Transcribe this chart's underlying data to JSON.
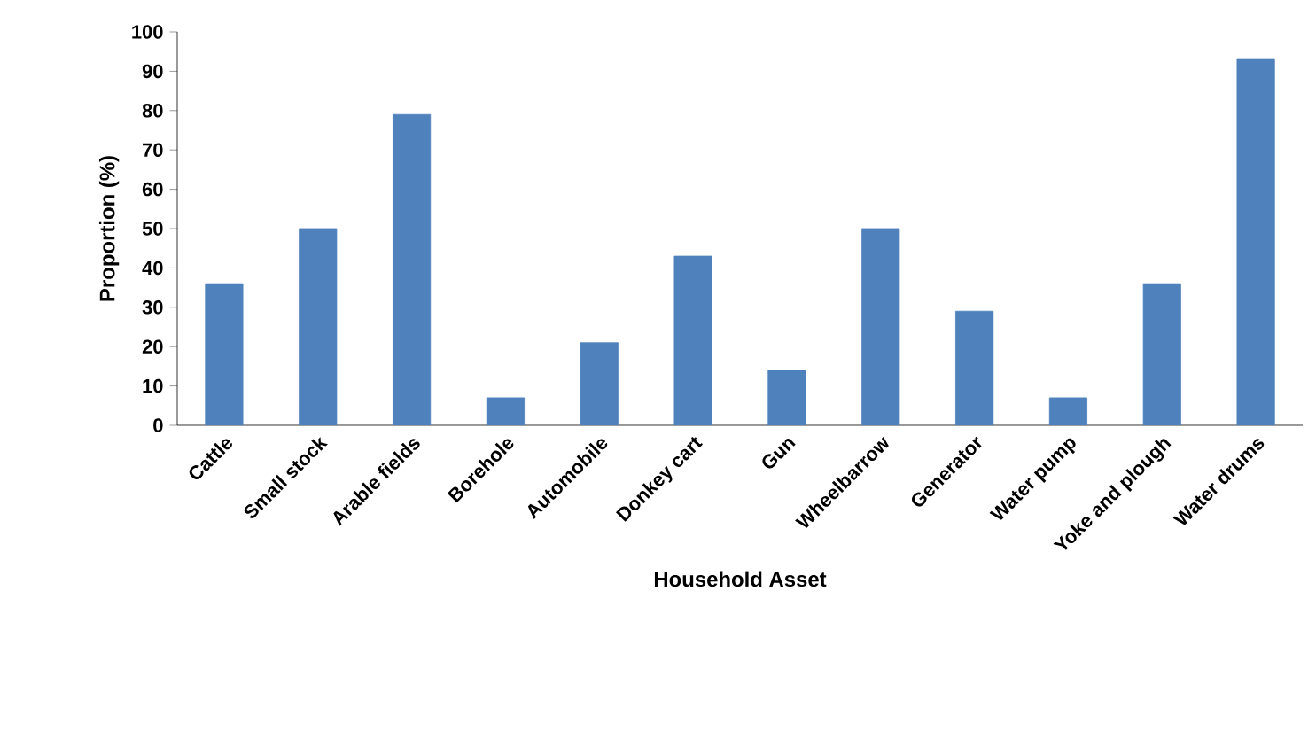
{
  "chart_data": {
    "type": "bar",
    "xlabel": "Household Asset",
    "ylabel": "Proportion (%)",
    "categories": [
      "Cattle",
      "Small stock",
      "Arable fields",
      "Borehole",
      "Automobile",
      "Donkey cart",
      "Gun",
      "Wheelbarrow",
      "Generator",
      "Water pump",
      "Yoke and plough",
      "Water drums"
    ],
    "values": [
      36,
      50,
      79,
      7,
      21,
      43,
      14,
      50,
      29,
      7,
      36,
      93
    ],
    "color": "#4f81bd",
    "ylim": [
      0,
      100
    ],
    "yticks": [
      0,
      10,
      20,
      30,
      40,
      50,
      60,
      70,
      80,
      90,
      100
    ],
    "grid": false
  }
}
